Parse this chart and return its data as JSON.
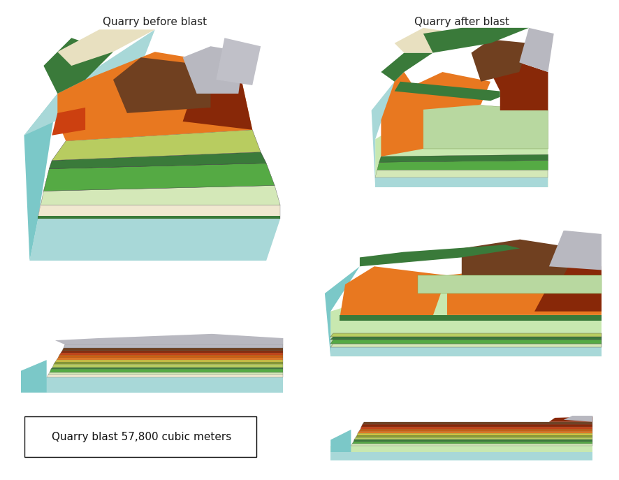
{
  "title_left": "Quarry before blast",
  "title_right": "Quarry after blast",
  "label_text": "Quarry blast 57,800 cubic meters",
  "bg_color": "#ffffff",
  "title_fontsize": 11,
  "label_fontsize": 11,
  "colors": {
    "sky_blue": "#87CEEB",
    "light_cyan": "#a8d8d8",
    "cyan": "#7bc8c8",
    "light_green": "#c8e8b0",
    "pale_green": "#d4e8b8",
    "yellow_green": "#b8cc60",
    "olive": "#8b9e30",
    "dark_green": "#3a7a3a",
    "green": "#4a9a4a",
    "bright_green": "#55aa44",
    "olive_drab": "#6b8e23",
    "yellow": "#d4c840",
    "dark_yellow": "#c8b830",
    "orange": "#e87820",
    "dark_orange": "#cc6010",
    "red_orange": "#cc4010",
    "dark_red": "#882808",
    "brown": "#704020",
    "dark_brown": "#503010",
    "gray": "#a0a0a0",
    "light_gray": "#c0c0c8",
    "silver": "#b8b8c0",
    "cream": "#e8e0c0",
    "light_cream": "#f0e8d0"
  }
}
